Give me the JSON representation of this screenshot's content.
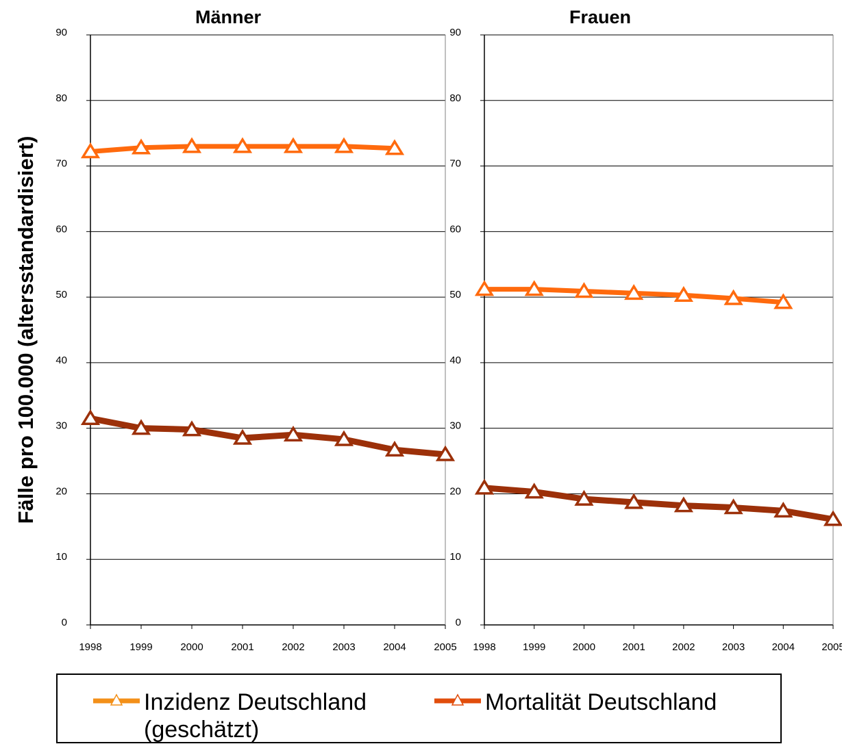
{
  "chart_data": {
    "type": "line",
    "ylabel": "Fälle pro 100.000 (altersstandardisiert)",
    "ylim": [
      0,
      90
    ],
    "yticks": [
      "0",
      "10",
      "20",
      "30",
      "40",
      "50",
      "60",
      "70",
      "80",
      "90"
    ],
    "categories": [
      "1998",
      "1999",
      "2000",
      "2001",
      "2002",
      "2003",
      "2004",
      "2005"
    ],
    "grid": true,
    "legend": {
      "placement": "bottom",
      "items": [
        {
          "label_line1": "Inzidenz Deutschland",
          "label_line2": "(geschätzt)",
          "color": "#f39019"
        },
        {
          "label_line1": "Mortalität Deutschland",
          "label_line2": "",
          "color": "#e14d0c"
        }
      ]
    },
    "panels": [
      {
        "title": "Männer",
        "series": [
          {
            "name": "Inzidenz Deutschland (geschätzt)",
            "color": "#ff6a0d",
            "marker_color": "#ff6a0d",
            "values": [
              72.2,
              72.8,
              73.0,
              73.0,
              73.0,
              73.0,
              72.7,
              null
            ]
          },
          {
            "name": "Mortalität Deutschland",
            "color": "#9c3009",
            "marker_color": "#9c3009",
            "values": [
              31.5,
              30.0,
              29.8,
              28.5,
              29.0,
              28.3,
              26.7,
              26.0
            ]
          }
        ]
      },
      {
        "title": "Frauen",
        "series": [
          {
            "name": "Inzidenz Deutschland (geschätzt)",
            "color": "#ff6a0d",
            "marker_color": "#ff6a0d",
            "values": [
              51.2,
              51.2,
              50.9,
              50.6,
              50.3,
              49.8,
              49.2,
              null
            ]
          },
          {
            "name": "Mortalität Deutschland",
            "color": "#9c3009",
            "marker_color": "#9c3009",
            "values": [
              20.9,
              20.3,
              19.2,
              18.7,
              18.2,
              17.9,
              17.4,
              16.1
            ]
          }
        ]
      }
    ]
  }
}
